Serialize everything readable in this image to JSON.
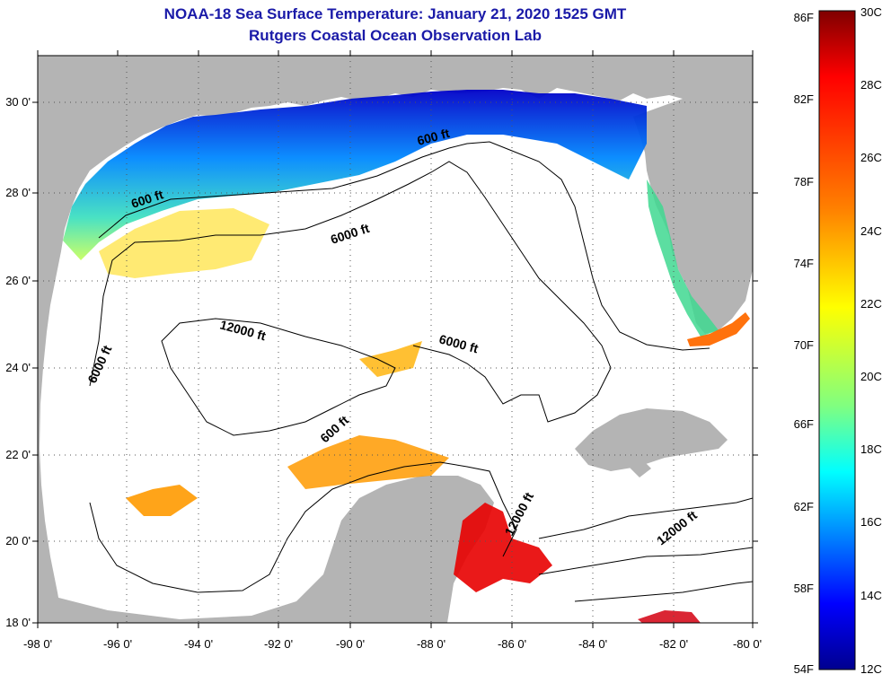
{
  "header": {
    "title": "NOAA-18 Sea Surface Temperature:  January 21, 2020 1525 GMT",
    "subtitle": "Rutgers Coastal Ocean Observation Lab"
  },
  "map": {
    "lon_ticks": [
      "-98 0'",
      "-96 0'",
      "-94 0'",
      "-92 0'",
      "-90 0'",
      "-88 0'",
      "-86 0'",
      "-84 0'",
      "-82 0'",
      "-80 0'"
    ],
    "lat_ticks": [
      "18 0'",
      "20 0'",
      "22 0'",
      "24 0'",
      "26 0'",
      "28 0'",
      "30 0'"
    ],
    "contour_labels": [
      "600 ft",
      "600 ft",
      "600 ft",
      "6000 ft",
      "6000 ft",
      "6000 ft",
      "12000 ft",
      "12000 ft",
      "12000 ft"
    ],
    "colors": {
      "land": "#b4b4b4",
      "ocean": "#ffffff",
      "contour": "#000000"
    }
  },
  "colorbar": {
    "fahrenheit_labels": [
      "86F",
      "82F",
      "78F",
      "74F",
      "70F",
      "66F",
      "62F",
      "58F",
      "54F"
    ],
    "celsius_labels": [
      "30C",
      "28C",
      "26C",
      "24C",
      "22C",
      "20C",
      "18C",
      "16C",
      "14C",
      "12C"
    ],
    "gradient": [
      "#7f0000",
      "#ff0000",
      "#ff8000",
      "#ffff00",
      "#80ff80",
      "#00ffff",
      "#0080ff",
      "#0000ff",
      "#00008f"
    ]
  }
}
